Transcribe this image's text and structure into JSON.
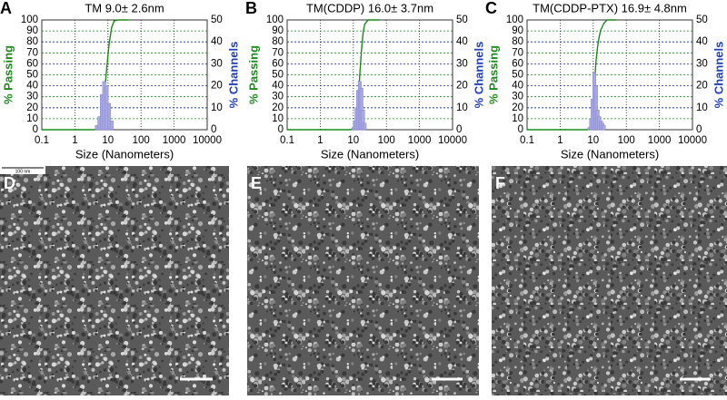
{
  "chart_data": [
    {
      "type": "combo",
      "panel": "A",
      "title": "TM  9.0± 2.6nm",
      "x_label": "Size (Nanometers)",
      "xscale": "log",
      "xlim": [
        0.1,
        10000
      ],
      "xticks": [
        0.1,
        1,
        10,
        100,
        1000,
        10000
      ],
      "ylim": [
        0,
        100
      ],
      "yticks": [
        0,
        10,
        20,
        30,
        40,
        50,
        60,
        70,
        80,
        90,
        100
      ],
      "y2lim": [
        0,
        50
      ],
      "y2ticks": [
        0,
        10,
        20,
        30,
        40,
        50
      ],
      "grid": true,
      "series": [
        {
          "name": "% Passing",
          "type": "line",
          "color": "#1a8c1a",
          "x": [
            0.1,
            3.9,
            4.6,
            5.5,
            6.5,
            7.7,
            9.1,
            10.8,
            12.9,
            15.3,
            20,
            40
          ],
          "values": [
            0,
            0,
            1,
            4,
            12,
            30,
            55,
            78,
            93,
            99,
            100,
            100
          ]
        },
        {
          "name": "% Channels",
          "type": "bar",
          "axis": "y2",
          "color": "#a8a8e4",
          "x": [
            4.6,
            5.5,
            6.5,
            7.7,
            9.1,
            10.8,
            12.9
          ],
          "values": [
            2,
            6,
            16,
            22,
            20,
            12,
            4
          ]
        }
      ]
    },
    {
      "type": "combo",
      "panel": "B",
      "title": "TM(CDDP) 16.0± 3.7nm",
      "x_label": "Size (Nanometers)",
      "xscale": "log",
      "xlim": [
        0.1,
        10000
      ],
      "xticks": [
        0.1,
        1,
        10,
        100,
        1000,
        10000
      ],
      "ylim": [
        0,
        100
      ],
      "yticks": [
        0,
        10,
        20,
        30,
        40,
        50,
        60,
        70,
        80,
        90,
        100
      ],
      "y2lim": [
        0,
        50
      ],
      "y2ticks": [
        0,
        10,
        20,
        30,
        40,
        50
      ],
      "grid": true,
      "series": [
        {
          "name": "% Passing",
          "type": "line",
          "color": "#1a8c1a",
          "x": [
            0.1,
            8.5,
            10,
            11.2,
            12.5,
            14,
            15.7,
            17.6,
            19.7,
            22,
            28,
            60
          ],
          "values": [
            0,
            0,
            1,
            4,
            12,
            28,
            50,
            72,
            88,
            96,
            100,
            100
          ]
        },
        {
          "name": "% Channels",
          "type": "bar",
          "axis": "y2",
          "color": "#a8a8e4",
          "x": [
            10,
            11.2,
            12.5,
            14,
            15.7,
            17.6,
            19.7,
            22
          ],
          "values": [
            1,
            4,
            10,
            18,
            22,
            19,
            9,
            3
          ]
        }
      ]
    },
    {
      "type": "combo",
      "panel": "C",
      "title": "TM(CDDP-PTX) 16.9± 4.8nm",
      "x_label": "Size (Nanometers)",
      "xscale": "log",
      "xlim": [
        0.1,
        10000
      ],
      "xticks": [
        0.1,
        1,
        10,
        100,
        1000,
        10000
      ],
      "ylim": [
        0,
        100
      ],
      "yticks": [
        0,
        10,
        20,
        30,
        40,
        50,
        60,
        70,
        80,
        90,
        100
      ],
      "y2lim": [
        0,
        50
      ],
      "y2ticks": [
        0,
        10,
        20,
        30,
        40,
        50
      ],
      "grid": true,
      "series": [
        {
          "name": "% Passing",
          "type": "line",
          "color": "#1a8c1a",
          "x": [
            0.1,
            6.5,
            7.7,
            8.6,
            9.6,
            10.8,
            12.1,
            13.6,
            15.2,
            17,
            21,
            26,
            50
          ],
          "values": [
            0,
            0,
            1,
            5,
            16,
            40,
            62,
            76,
            85,
            91,
            97,
            100,
            100
          ]
        },
        {
          "name": "% Channels",
          "type": "bar",
          "axis": "y2",
          "color": "#a8a8e4",
          "x": [
            7.7,
            8.6,
            9.6,
            10.8,
            12.1,
            13.6,
            15.2,
            17,
            19,
            21
          ],
          "values": [
            1,
            5,
            14,
            26,
            20,
            9,
            6,
            4,
            3,
            2
          ]
        }
      ]
    }
  ],
  "images": [
    {
      "label": "D",
      "scale_label": "100 nm"
    },
    {
      "label": "E"
    },
    {
      "label": "F"
    }
  ]
}
